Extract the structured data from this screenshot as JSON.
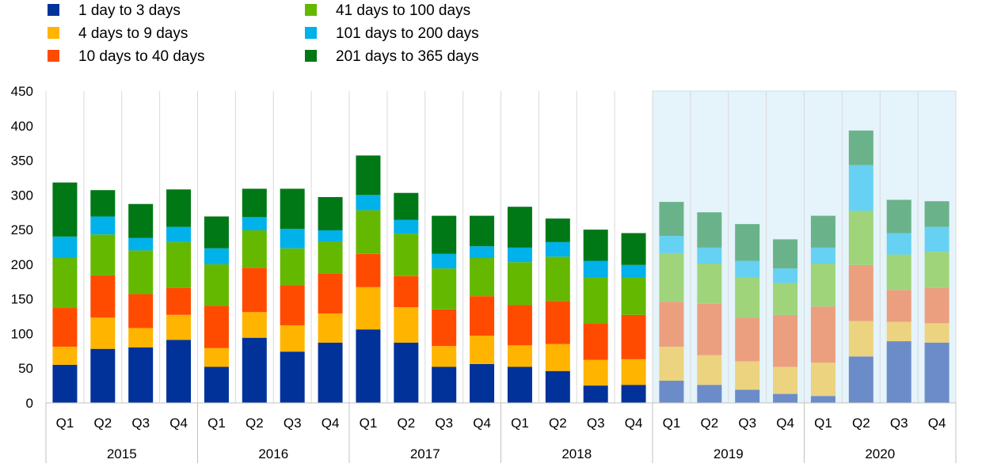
{
  "chart_data": {
    "type": "bar",
    "stacked": true,
    "ylim": [
      0,
      450
    ],
    "yticks": [
      0,
      50,
      100,
      150,
      200,
      250,
      300,
      350,
      400,
      450
    ],
    "grid": "vertical separators between quarters",
    "legend_position": "top-left",
    "highlight": {
      "from_year": "2019",
      "to_year": "2020",
      "color": "#e5f3fa",
      "note": "projected periods shown with lighter colours"
    },
    "years": [
      "2015",
      "2016",
      "2017",
      "2018",
      "2019",
      "2020"
    ],
    "quarters": [
      "Q1",
      "Q2",
      "Q3",
      "Q4"
    ],
    "categories": [
      "2015 Q1",
      "2015 Q2",
      "2015 Q3",
      "2015 Q4",
      "2016 Q1",
      "2016 Q2",
      "2016 Q3",
      "2016 Q4",
      "2017 Q1",
      "2017 Q2",
      "2017 Q3",
      "2017 Q4",
      "2018 Q1",
      "2018 Q2",
      "2018 Q3",
      "2018 Q4",
      "2019 Q1",
      "2019 Q2",
      "2019 Q3",
      "2019 Q4",
      "2020 Q1",
      "2020 Q2",
      "2020 Q3",
      "2020 Q4"
    ],
    "series": [
      {
        "name": "1 day to 3 days",
        "color": "#003299",
        "light_color": "#6b8cc8",
        "values": [
          55,
          78,
          80,
          91,
          52,
          94,
          74,
          87,
          106,
          87,
          52,
          56,
          52,
          46,
          25,
          26,
          32,
          26,
          19,
          13,
          10,
          67,
          89,
          87
        ]
      },
      {
        "name": "4 days to 9 days",
        "color": "#ffb400",
        "light_color": "#ebd380",
        "values": [
          26,
          45,
          28,
          36,
          27,
          37,
          38,
          42,
          61,
          51,
          30,
          41,
          31,
          39,
          37,
          37,
          49,
          43,
          41,
          39,
          48,
          51,
          28,
          28
        ]
      },
      {
        "name": "10 days to 40 days",
        "color": "#ff4b00",
        "light_color": "#eb9f7f",
        "values": [
          56,
          61,
          49,
          39,
          61,
          64,
          58,
          58,
          48,
          45,
          53,
          57,
          58,
          62,
          53,
          64,
          65,
          74,
          63,
          75,
          81,
          81,
          46,
          51
        ]
      },
      {
        "name": "41 days to 100 days",
        "color": "#65b800",
        "light_color": "#9fd47b",
        "values": [
          72,
          59,
          63,
          66,
          60,
          54,
          53,
          46,
          63,
          61,
          59,
          55,
          62,
          64,
          66,
          54,
          70,
          58,
          58,
          46,
          62,
          78,
          51,
          52
        ]
      },
      {
        "name": "101 days to 200 days",
        "color": "#00b1ea",
        "light_color": "#66d1f2",
        "values": [
          31,
          26,
          18,
          22,
          23,
          19,
          28,
          16,
          22,
          20,
          21,
          17,
          21,
          21,
          24,
          18,
          25,
          23,
          24,
          21,
          23,
          66,
          31,
          36
        ]
      },
      {
        "name": "201 days to 365 days",
        "color": "#007816",
        "light_color": "#6ab38a",
        "values": [
          78,
          38,
          49,
          54,
          46,
          41,
          58,
          48,
          57,
          39,
          55,
          44,
          59,
          34,
          45,
          46,
          49,
          51,
          53,
          42,
          46,
          50,
          48,
          37
        ]
      }
    ]
  }
}
